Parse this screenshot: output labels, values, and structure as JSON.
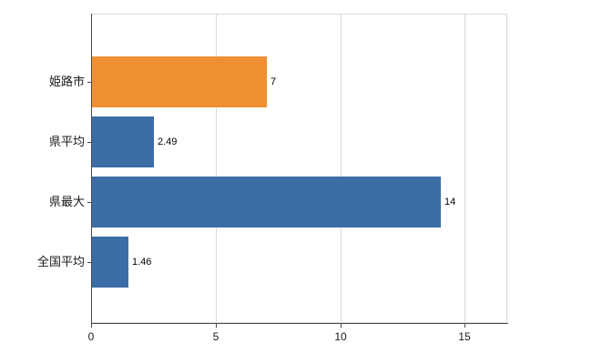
{
  "chart_data": {
    "type": "bar",
    "orientation": "horizontal",
    "title": "",
    "xlabel": "",
    "ylabel": "",
    "categories": [
      "姫路市",
      "県平均",
      "県最大",
      "全国平均"
    ],
    "values": [
      7,
      2.49,
      14,
      1.46
    ],
    "value_labels": [
      "7",
      "2.49",
      "14",
      "1.46"
    ],
    "bar_colors": [
      "#ee8f31",
      "#3c6da6",
      "#3c6da6",
      "#3c6da6"
    ],
    "xlim": [
      0,
      16.7
    ],
    "x_ticks": [
      0,
      5,
      10,
      15
    ],
    "x_tick_labels": [
      "0",
      "5",
      "10",
      "15"
    ],
    "grid": true,
    "legend": "none",
    "colors": {
      "highlight_bar": "#ee8f31",
      "default_bar": "#3c6da6",
      "gridline": "#d9d9d9",
      "axis": "#4c4c4c",
      "background": "#ffffff"
    }
  }
}
